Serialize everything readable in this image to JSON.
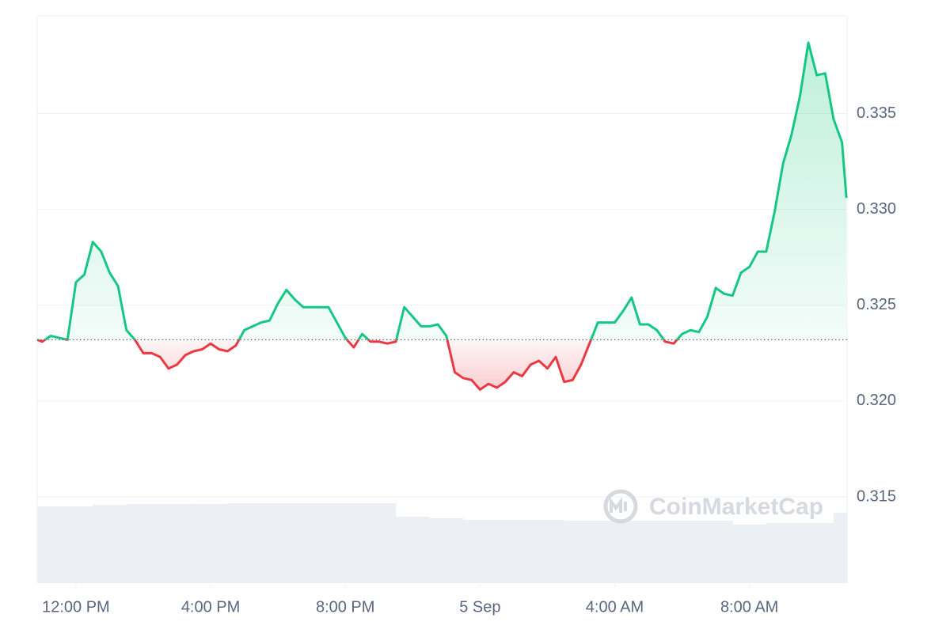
{
  "chart_data": {
    "type": "line",
    "x": [
      -1.15,
      -1,
      -0.75,
      -0.5,
      -0.25,
      0,
      0.25,
      0.5,
      0.75,
      1,
      1.25,
      1.5,
      1.75,
      2,
      2.25,
      2.5,
      2.75,
      3,
      3.25,
      3.5,
      3.75,
      4,
      4.25,
      4.5,
      4.75,
      5,
      5.25,
      5.5,
      5.75,
      6,
      6.25,
      6.5,
      6.75,
      7,
      7.25,
      7.5,
      7.75,
      8,
      8.25,
      8.5,
      8.75,
      9,
      9.25,
      9.5,
      9.75,
      10,
      10.25,
      10.5,
      10.75,
      11,
      11.25,
      11.5,
      11.75,
      12,
      12.25,
      12.5,
      12.75,
      13,
      13.25,
      13.5,
      13.75,
      14,
      14.25,
      14.5,
      14.75,
      15,
      15.25,
      15.5,
      15.75,
      16,
      16.25,
      16.5,
      16.75,
      17,
      17.25,
      17.5,
      17.75,
      18,
      18.25,
      18.5,
      18.75,
      19,
      19.25,
      19.5,
      19.75,
      20,
      20.25,
      20.5,
      20.75,
      21,
      21.25,
      21.5,
      21.75,
      22,
      22.25,
      22.5,
      22.75,
      22.88
    ],
    "series": [
      {
        "color": "#16c784",
        "below_color": "#ea3943",
        "values": [
          0.3232,
          0.3231,
          0.3234,
          0.3233,
          0.3232,
          0.3262,
          0.3266,
          0.3283,
          0.3278,
          0.3267,
          0.326,
          0.3237,
          0.3232,
          0.3225,
          0.3225,
          0.3223,
          0.3217,
          0.3219,
          0.3224,
          0.3226,
          0.3227,
          0.323,
          0.3227,
          0.3226,
          0.3229,
          0.3237,
          0.3239,
          0.3241,
          0.3242,
          0.3251,
          0.3258,
          0.3253,
          0.3249,
          0.3249,
          0.3249,
          0.3249,
          0.3241,
          0.3233,
          0.3228,
          0.3235,
          0.3231,
          0.3231,
          0.323,
          0.3231,
          0.3249,
          0.3244,
          0.3239,
          0.3239,
          0.324,
          0.3234,
          0.3215,
          0.3212,
          0.3211,
          0.3206,
          0.3209,
          0.3207,
          0.321,
          0.3215,
          0.3213,
          0.3219,
          0.3221,
          0.3217,
          0.3223,
          0.321,
          0.3211,
          0.3219,
          0.323,
          0.3241,
          0.3241,
          0.3241,
          0.3247,
          0.3254,
          0.324,
          0.324,
          0.3237,
          0.3231,
          0.323,
          0.3235,
          0.3237,
          0.3236,
          0.3244,
          0.3259,
          0.3256,
          0.3255,
          0.3267,
          0.327,
          0.3278,
          0.3278,
          0.3299,
          0.3324,
          0.3339,
          0.3359,
          0.3387,
          0.337,
          0.3371,
          0.3347,
          0.3335,
          0.3306
        ]
      }
    ],
    "baseline": 0.3232,
    "volume": {
      "color": "#eceff3",
      "x": [
        -1,
        0,
        1,
        2,
        3,
        4,
        5,
        6,
        7,
        8,
        9,
        10,
        11,
        12,
        13,
        14,
        15,
        16,
        17,
        18,
        19,
        20,
        21,
        22,
        23
      ],
      "values": [
        97,
        97,
        99,
        100,
        100,
        100,
        101,
        101,
        101,
        101,
        101,
        84,
        82,
        80,
        80,
        80,
        79,
        79,
        79,
        79,
        79,
        74,
        76,
        76,
        89
      ]
    },
    "xlim": [
      -1.15,
      22.9
    ],
    "xticks": [
      {
        "value": 0,
        "label": "12:00 PM"
      },
      {
        "value": 4,
        "label": "4:00 PM"
      },
      {
        "value": 8,
        "label": "8:00 PM"
      },
      {
        "value": 12,
        "label": "5 Sep"
      },
      {
        "value": 16,
        "label": "4:00 AM"
      },
      {
        "value": 20,
        "label": "8:00 AM"
      }
    ],
    "ylim": [
      0.3105,
      0.3401
    ],
    "yticks": [
      0.315,
      {
        "value": 0.32,
        "label": "0.320"
      },
      0.325,
      {
        "value": 0.33,
        "label": "0.330"
      },
      0.335
    ],
    "grid": true,
    "watermark": "CoinMarketCap"
  }
}
